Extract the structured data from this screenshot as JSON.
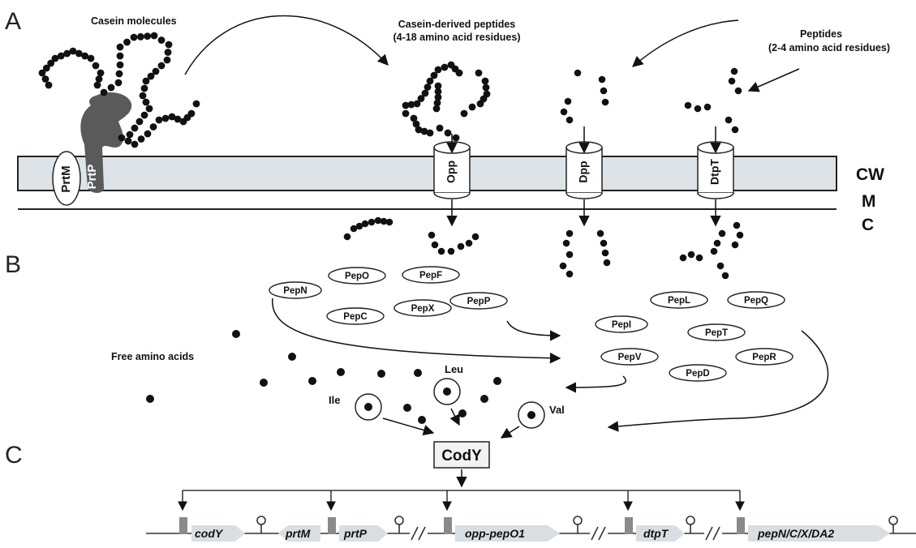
{
  "panels": {
    "a": "A",
    "b": "B",
    "c": "C"
  },
  "labels": {
    "casein_molecules": "Casein molecules",
    "casein_peptides_1": "Casein-derived peptides",
    "casein_peptides_2": "(4-18 amino acid residues)",
    "peptides_1": "Peptides",
    "peptides_2": "(2-4 amino acid residues)",
    "free_amino_acids": "Free amino acids"
  },
  "zones": {
    "cw": "CW",
    "m": "M",
    "c": "C"
  },
  "proteins": {
    "prtm": "PrtM",
    "prtp": "PrtP"
  },
  "transporters": {
    "opp": "Opp",
    "dpp": "Dpp",
    "dtpt": "DtpT"
  },
  "peptidases": {
    "pepo": "PepO",
    "pepf": "PepF",
    "pepn": "PepN",
    "pepc": "PepC",
    "pepx": "PepX",
    "pepp": "PepP",
    "pepl": "PepL",
    "pepq": "PepQ",
    "pepi": "PepI",
    "pept": "PepT",
    "pepv": "PepV",
    "pepr": "PepR",
    "pepd": "PepD"
  },
  "amino_acids": {
    "leu": "Leu",
    "ile": "Ile",
    "val": "Val"
  },
  "regulator": "CodY",
  "genes": {
    "cody": "codY",
    "prtm": "prtM",
    "prtp": "prtP",
    "opp": "opp-pepO1",
    "dtpt": "dtpT",
    "pepn": "pepN/C/X/DA2"
  },
  "colors": {
    "cell_wall": "#dde3e6",
    "prtp": "#5a5a5a",
    "promoter": "#8a8a8a",
    "gene_arrow": "#d9dee2",
    "bead": "#111111"
  }
}
